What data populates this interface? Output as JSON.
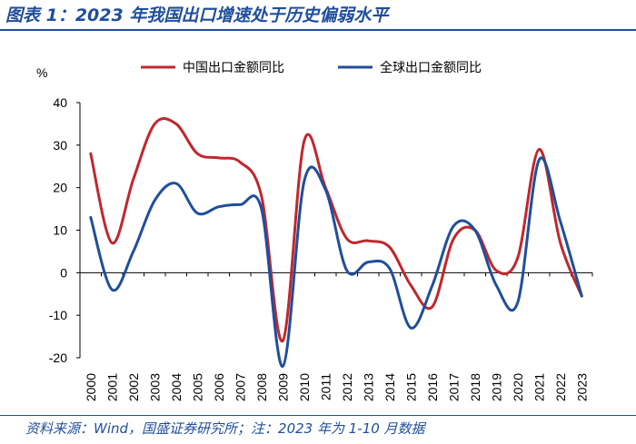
{
  "header": {
    "title": "图表 1：2023 年我国出口增速处于历史偏弱水平"
  },
  "footer": {
    "source": "资料来源：Wind，国盛证券研究所；注：2023 年为 1-10 月数据"
  },
  "colors": {
    "china": "#c0272d",
    "global": "#1f4e9c",
    "title": "#1f4e9c"
  },
  "chart_data": {
    "type": "line",
    "title": "图表 1：2023 年我国出口增速处于历史偏弱水平",
    "ylabel": "%",
    "xlabel": "",
    "ylim": [
      -20,
      40
    ],
    "yticks": [
      -20,
      -10,
      0,
      10,
      20,
      30,
      40
    ],
    "categories": [
      "2000",
      "2001",
      "2002",
      "2003",
      "2004",
      "2005",
      "2006",
      "2007",
      "2008",
      "2009",
      "2010",
      "2011",
      "2012",
      "2013",
      "2014",
      "2015",
      "2016",
      "2017",
      "2018",
      "2019",
      "2020",
      "2021",
      "2022",
      "2023"
    ],
    "series": [
      {
        "name": "中国出口金额同比",
        "color": "#c0272d",
        "values": [
          28,
          7,
          22,
          35,
          35,
          28,
          27,
          26,
          18,
          -16,
          31,
          20,
          8,
          7.5,
          6,
          -3,
          -8,
          8,
          10,
          0.5,
          3.5,
          29,
          7,
          -5.5
        ]
      },
      {
        "name": "全球出口金额同比",
        "color": "#1f4e9c",
        "values": [
          13,
          -4,
          5,
          17,
          21,
          14,
          15.5,
          16,
          15,
          -22,
          21.5,
          19.5,
          0.5,
          2.5,
          1,
          -13,
          -3,
          11,
          10,
          -3,
          -7,
          26.5,
          12,
          -5.5
        ]
      }
    ]
  }
}
